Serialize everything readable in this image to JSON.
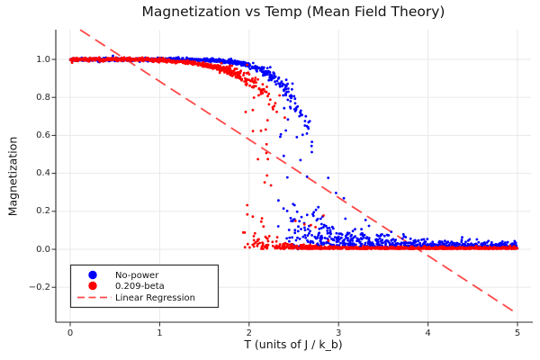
{
  "title": "Magnetization vs Temp (Mean Field Theory)",
  "x_axis": {
    "label": "T (units of J / k_b)",
    "ticks": [
      0,
      1,
      2,
      3,
      4,
      5
    ],
    "tick_labels": [
      "0",
      "1",
      "2",
      "3",
      "4",
      "5"
    ]
  },
  "y_axis": {
    "label": "Magnetization",
    "ticks": [
      1.0,
      0.8,
      0.6,
      0.4,
      0.2,
      0.0,
      -0.2
    ],
    "tick_labels": [
      "1.0",
      "0.8",
      "0.6",
      "0.4",
      "0.2",
      "0.0",
      "−0.2"
    ]
  },
  "legend": {
    "items": [
      {
        "label": "No-power",
        "color": "#0000ff",
        "type": "marker"
      },
      {
        "label": "0.209-beta",
        "color": "#ff0000",
        "type": "marker"
      },
      {
        "label": "Linear Regression",
        "color": "rgba(255,0,0,0.72)",
        "type": "dash"
      }
    ]
  },
  "colors": {
    "grid": "#e7e7e7",
    "spine": "#2b2b2b",
    "regression": "rgba(255,0,0,0.72)",
    "legend_border": "#333333",
    "legend_bg": "#ffffff"
  },
  "chart_data": {
    "type": "scatter",
    "title": "Magnetization vs Temp (Mean Field Theory)",
    "xlabel": "T (units of J / k_b)",
    "ylabel": "Magnetization",
    "xlim": [
      -0.16,
      5.15
    ],
    "ylim": [
      -0.384,
      1.156
    ],
    "grid": true,
    "legend_position": "lower-left",
    "regression": {
      "name": "Linear Regression",
      "intercept": 1.19,
      "slope": -0.306,
      "x_range": [
        0,
        5
      ],
      "style": "dashed"
    },
    "series": [
      {
        "name": "No-power",
        "color": "#0000ff",
        "n": 1600,
        "seed": 42,
        "t_max": 5,
        "marker_px": 1.4,
        "mean_curve": [
          [
            0,
            1.0
          ],
          [
            1.3,
            0.999
          ],
          [
            1.6,
            0.995
          ],
          [
            1.8,
            0.988
          ],
          [
            1.95,
            0.975
          ],
          [
            2.1,
            0.952
          ],
          [
            2.2,
            0.928
          ],
          [
            2.3,
            0.895
          ],
          [
            2.4,
            0.845
          ],
          [
            2.5,
            0.775
          ],
          [
            2.6,
            0.69
          ],
          [
            2.7,
            0.59
          ],
          [
            2.8,
            0.49
          ],
          [
            2.9,
            0.4
          ],
          [
            3.0,
            0.33
          ]
        ],
        "noise": {
          "s0": 0.0045,
          "amp": 0.045,
          "t_start": 1.8
        },
        "collapse": {
          "start": 2.28,
          "end": 2.8,
          "pow": 1.1,
          "col_prob": 0.22
        },
        "tail": {
          "floor": 0.004,
          "s0": 0.014,
          "amp": 0.13,
          "decay": 0.5,
          "t_ref": 2.5
        },
        "outliers": {
          "t_min": 2.8,
          "t_max": 3.4,
          "prob": 0.04,
          "max": 0.5,
          "decay": 0.6
        }
      },
      {
        "name": "0.209-beta",
        "color": "#ff0000",
        "n": 1600,
        "seed": 7,
        "t_max": 5,
        "marker_px": 1.4,
        "mean_curve": [
          [
            0,
            1.0
          ],
          [
            0.85,
            1.0
          ],
          [
            1.1,
            0.993
          ],
          [
            1.3,
            0.985
          ],
          [
            1.45,
            0.976
          ],
          [
            1.6,
            0.962
          ],
          [
            1.75,
            0.944
          ],
          [
            1.9,
            0.917
          ],
          [
            2.0,
            0.892
          ],
          [
            2.1,
            0.858
          ],
          [
            2.2,
            0.81
          ],
          [
            2.3,
            0.745
          ],
          [
            2.4,
            0.66
          ],
          [
            2.5,
            0.56
          ]
        ],
        "noise": {
          "s0": 0.0045,
          "amp": 0.05,
          "t_start": 1.4
        },
        "collapse": {
          "start": 1.92,
          "end": 2.42,
          "pow": 1.1,
          "col_prob": 0.22
        },
        "tail": {
          "floor": 0.002,
          "s0": 0.005,
          "amp": 0.05,
          "decay": 0.22,
          "t_ref": 2.05
        },
        "outliers": {
          "t_min": 2.42,
          "t_max": 2.9,
          "prob": 0.025,
          "max": 0.28,
          "decay": 1.5
        }
      }
    ]
  }
}
